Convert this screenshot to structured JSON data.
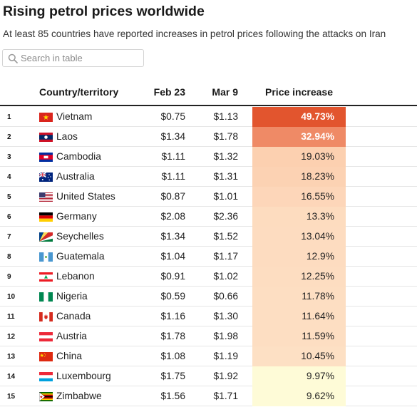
{
  "header": {
    "title": "Rising petrol prices worldwide",
    "subtitle": "At least 85 countries have reported increases in petrol prices following the attacks on Iran"
  },
  "search": {
    "placeholder": "Search in table",
    "value": ""
  },
  "columns": {
    "country": "Country/territory",
    "feb": "Feb 23",
    "mar": "Mar 9",
    "increase": "Price increase"
  },
  "rows": [
    {
      "rank": "1",
      "flag": "vietnam-flag-icon",
      "country": "Vietnam",
      "feb": "$0.75",
      "mar": "$1.13",
      "increase": "49.73%",
      "increase_value": 49.73,
      "cell_color": "#e2552e"
    },
    {
      "rank": "2",
      "flag": "laos-flag-icon",
      "country": "Laos",
      "feb": "$1.34",
      "mar": "$1.78",
      "increase": "32.94%",
      "increase_value": 32.94,
      "cell_color": "#ef8a66"
    },
    {
      "rank": "3",
      "flag": "cambodia-flag-icon",
      "country": "Cambodia",
      "feb": "$1.11",
      "mar": "$1.32",
      "increase": "19.03%",
      "increase_value": 19.03,
      "cell_color": "#fcd0b0"
    },
    {
      "rank": "4",
      "flag": "australia-flag-icon",
      "country": "Australia",
      "feb": "$1.11",
      "mar": "$1.31",
      "increase": "18.23%",
      "increase_value": 18.23,
      "cell_color": "#fcd2b3"
    },
    {
      "rank": "5",
      "flag": "united-states-flag-icon",
      "country": "United States",
      "feb": "$0.87",
      "mar": "$1.01",
      "increase": "16.55%",
      "increase_value": 16.55,
      "cell_color": "#fdd6b9"
    },
    {
      "rank": "6",
      "flag": "germany-flag-icon",
      "country": "Germany",
      "feb": "$2.08",
      "mar": "$2.36",
      "increase": "13.3%",
      "increase_value": 13.3,
      "cell_color": "#fddcbf"
    },
    {
      "rank": "7",
      "flag": "seychelles-flag-icon",
      "country": "Seychelles",
      "feb": "$1.34",
      "mar": "$1.52",
      "increase": "13.04%",
      "increase_value": 13.04,
      "cell_color": "#fddcc0"
    },
    {
      "rank": "8",
      "flag": "guatemala-flag-icon",
      "country": "Guatemala",
      "feb": "$1.04",
      "mar": "$1.17",
      "increase": "12.9%",
      "increase_value": 12.9,
      "cell_color": "#fddcc0"
    },
    {
      "rank": "9",
      "flag": "lebanon-flag-icon",
      "country": "Lebanon",
      "feb": "$0.91",
      "mar": "$1.02",
      "increase": "12.25%",
      "increase_value": 12.25,
      "cell_color": "#fdddc1"
    },
    {
      "rank": "10",
      "flag": "nigeria-flag-icon",
      "country": "Nigeria",
      "feb": "$0.59",
      "mar": "$0.66",
      "increase": "11.78%",
      "increase_value": 11.78,
      "cell_color": "#fddec2"
    },
    {
      "rank": "11",
      "flag": "canada-flag-icon",
      "country": "Canada",
      "feb": "$1.16",
      "mar": "$1.30",
      "increase": "11.64%",
      "increase_value": 11.64,
      "cell_color": "#fddec2"
    },
    {
      "rank": "12",
      "flag": "austria-flag-icon",
      "country": "Austria",
      "feb": "$1.78",
      "mar": "$1.98",
      "increase": "11.59%",
      "increase_value": 11.59,
      "cell_color": "#fddec2"
    },
    {
      "rank": "13",
      "flag": "china-flag-icon",
      "country": "China",
      "feb": "$1.08",
      "mar": "$1.19",
      "increase": "10.45%",
      "increase_value": 10.45,
      "cell_color": "#fde0c4"
    },
    {
      "rank": "14",
      "flag": "luxembourg-flag-icon",
      "country": "Luxembourg",
      "feb": "$1.75",
      "mar": "$1.92",
      "increase": "9.97%",
      "increase_value": 9.97,
      "cell_color": "#fefbd7"
    },
    {
      "rank": "15",
      "flag": "zimbabwe-flag-icon",
      "country": "Zimbabwe",
      "feb": "$1.56",
      "mar": "$1.71",
      "increase": "9.62%",
      "increase_value": 9.62,
      "cell_color": "#fefbd7"
    }
  ]
}
